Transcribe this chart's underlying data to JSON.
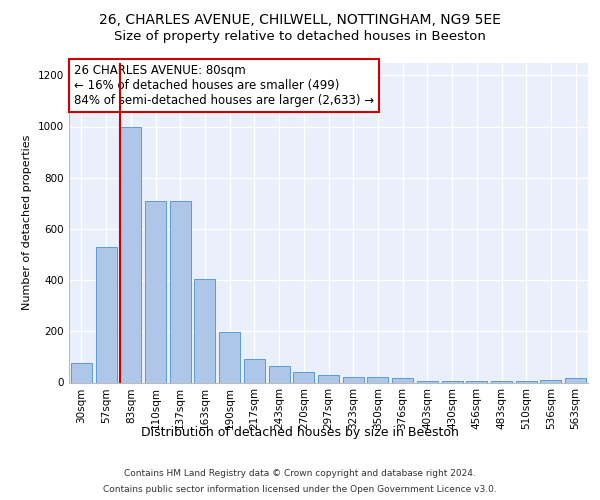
{
  "title1": "26, CHARLES AVENUE, CHILWELL, NOTTINGHAM, NG9 5EE",
  "title2": "Size of property relative to detached houses in Beeston",
  "xlabel": "Distribution of detached houses by size in Beeston",
  "ylabel": "Number of detached properties",
  "categories": [
    "30sqm",
    "57sqm",
    "83sqm",
    "110sqm",
    "137sqm",
    "163sqm",
    "190sqm",
    "217sqm",
    "243sqm",
    "270sqm",
    "297sqm",
    "323sqm",
    "350sqm",
    "376sqm",
    "403sqm",
    "430sqm",
    "456sqm",
    "483sqm",
    "510sqm",
    "536sqm",
    "563sqm"
  ],
  "values": [
    75,
    530,
    1000,
    710,
    710,
    405,
    198,
    90,
    65,
    40,
    30,
    20,
    20,
    18,
    5,
    5,
    5,
    5,
    5,
    10,
    18
  ],
  "bar_color": "#aec6e8",
  "bar_edge_color": "#5b9bd5",
  "annotation_box_color": "#ffffff",
  "annotation_box_edge": "#cc0000",
  "vline_color": "#cc0000",
  "vline_x_pos": 1.57,
  "annotation_title": "26 CHARLES AVENUE: 80sqm",
  "annotation_line1": "← 16% of detached houses are smaller (499)",
  "annotation_line2": "84% of semi-detached houses are larger (2,633) →",
  "footer1": "Contains HM Land Registry data © Crown copyright and database right 2024.",
  "footer2": "Contains public sector information licensed under the Open Government Licence v3.0.",
  "ylim": [
    0,
    1250
  ],
  "yticks": [
    0,
    200,
    400,
    600,
    800,
    1000,
    1200
  ],
  "plot_bg_color": "#eaf0fb",
  "title1_fontsize": 10,
  "title2_fontsize": 9.5,
  "xlabel_fontsize": 9,
  "ylabel_fontsize": 8,
  "tick_fontsize": 7.5,
  "annotation_fontsize": 8.5,
  "footer_fontsize": 6.5
}
